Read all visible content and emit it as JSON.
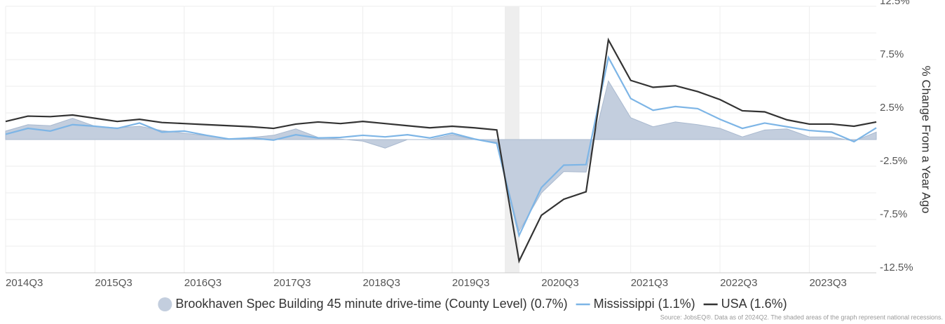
{
  "chart_data": {
    "type": "line",
    "y_axis_label": "% Change From a Year Ago",
    "source": "Source: JobsEQ®. Data as of 2024Q2. The shaded areas of the graph represent national recessions.",
    "categories": [
      "2014Q3",
      null,
      null,
      null,
      "2015Q3",
      null,
      null,
      null,
      "2016Q3",
      null,
      null,
      null,
      "2017Q3",
      null,
      null,
      null,
      "2018Q3",
      null,
      null,
      null,
      "2019Q3",
      null,
      null,
      null,
      "2020Q3",
      null,
      null,
      null,
      "2021Q3",
      null,
      null,
      null,
      "2022Q3",
      null,
      null,
      null,
      "2023Q3",
      null,
      null,
      null
    ],
    "series": [
      {
        "name": "Brookhaven Spec Building 45 minute drive-time (County Level) (0.7%)",
        "kind": "area",
        "color": "#c3cede",
        "values": [
          0.8,
          1.4,
          1.3,
          2.0,
          1.25,
          1.1,
          1.25,
          0.85,
          0.6,
          0.35,
          0.05,
          0.2,
          0.4,
          1.0,
          0.2,
          0.05,
          -0.15,
          -0.8,
          0.0,
          0.0,
          0.45,
          0.0,
          -0.25,
          -8.6,
          -5.0,
          -3.0,
          -3.05,
          5.5,
          2.05,
          1.2,
          1.65,
          1.4,
          1.05,
          0.25,
          0.9,
          1.0,
          0.25,
          0.25,
          -0.15,
          0.7
        ]
      },
      {
        "name": "Mississippi (1.1%)",
        "kind": "line",
        "color": "#7db5e6",
        "values": [
          0.5,
          1.05,
          0.8,
          1.4,
          1.25,
          1.05,
          1.55,
          0.7,
          0.8,
          0.4,
          0.05,
          0.15,
          -0.05,
          0.45,
          0.15,
          0.2,
          0.4,
          0.25,
          0.45,
          0.15,
          0.6,
          0.05,
          -0.35,
          -9.0,
          -4.5,
          -2.4,
          -2.35,
          7.7,
          3.85,
          2.75,
          3.1,
          2.9,
          1.9,
          1.05,
          1.55,
          1.2,
          0.85,
          0.7,
          -0.2,
          1.1
        ]
      },
      {
        "name": "USA (1.6%)",
        "kind": "line",
        "color": "#333333",
        "values": [
          1.7,
          2.2,
          2.15,
          2.3,
          2.0,
          1.7,
          1.9,
          1.6,
          1.5,
          1.4,
          1.3,
          1.2,
          1.05,
          1.45,
          1.65,
          1.5,
          1.7,
          1.5,
          1.3,
          1.1,
          1.25,
          1.1,
          0.9,
          -11.4,
          -7.1,
          -5.6,
          -4.9,
          9.35,
          5.55,
          4.9,
          5.05,
          4.5,
          3.75,
          2.7,
          2.6,
          1.85,
          1.45,
          1.45,
          1.25,
          1.65
        ]
      }
    ],
    "ylim": [
      -12.5,
      12.5
    ],
    "yticks": [
      {
        "value": 12.5,
        "label": "12.5%"
      },
      {
        "value": 7.5,
        "label": "7.5%"
      },
      {
        "value": 2.5,
        "label": "2.5%"
      },
      {
        "value": -2.5,
        "label": "-2.5%"
      },
      {
        "value": -7.5,
        "label": "-7.5%"
      },
      {
        "value": -12.5,
        "label": "-12.5%"
      }
    ],
    "minor_yticks": [
      10,
      5,
      0,
      -5,
      -10
    ],
    "grid": true
  }
}
